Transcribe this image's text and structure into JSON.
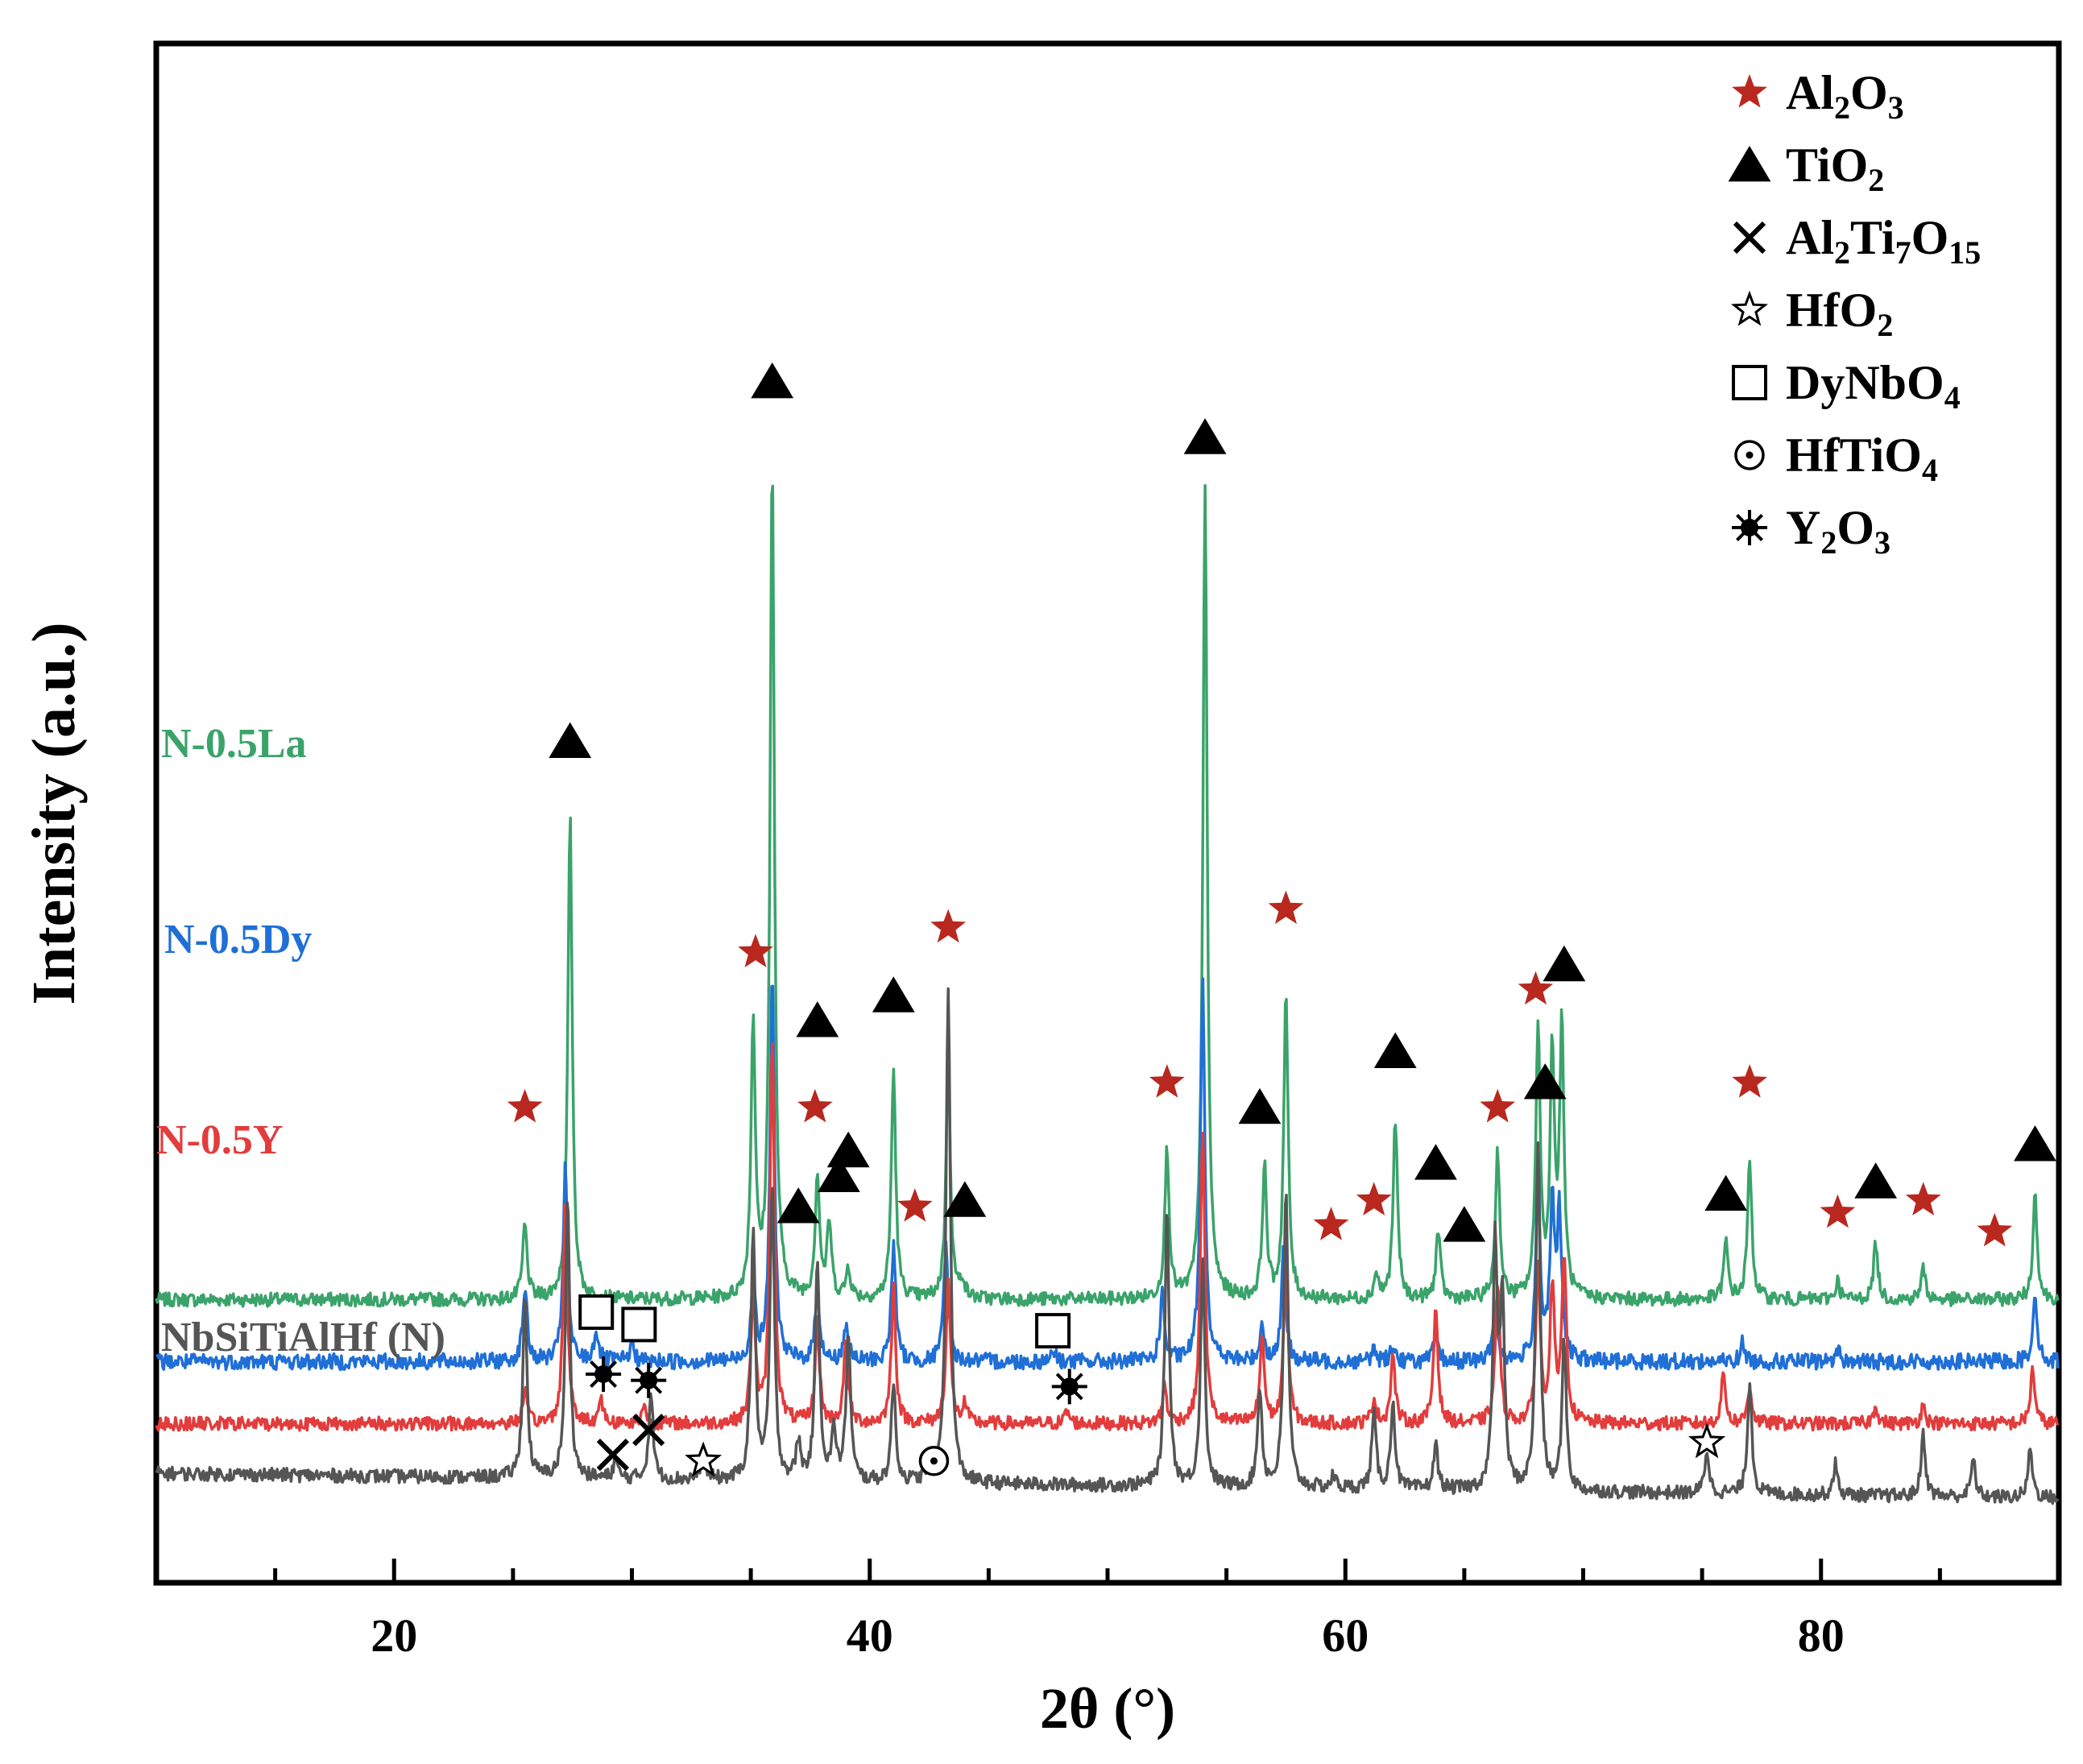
{
  "chart_data": {
    "type": "line",
    "title": "",
    "xlabel": "2θ (°)",
    "ylabel": "Intensity (a.u.)",
    "xlim": [
      10,
      90
    ],
    "xticks": [
      20,
      40,
      60,
      80
    ],
    "yticks": [],
    "colors": {
      "N-0.5La": "#3aa36a",
      "N-0.5Dy": "#1f6fd6",
      "N-0.5Y": "#e23c3c",
      "NbSiTiAlHf (N)": "#555555",
      "al2o3_marker": "#b8281f"
    },
    "legend": [
      {
        "key": "al2o3",
        "icon": "red-star-icon",
        "parts": [
          [
            "Al",
            ""
          ],
          [
            "2",
            "sub"
          ],
          [
            "O",
            ""
          ],
          [
            "3",
            "sub"
          ]
        ]
      },
      {
        "key": "tio2",
        "icon": "black-triangle-icon",
        "parts": [
          [
            "TiO",
            ""
          ],
          [
            "2",
            "sub"
          ]
        ]
      },
      {
        "key": "al2ti7o15",
        "icon": "cross-icon",
        "parts": [
          [
            "Al",
            ""
          ],
          [
            "2",
            "sub"
          ],
          [
            "Ti",
            ""
          ],
          [
            "7",
            "sub"
          ],
          [
            "O",
            ""
          ],
          [
            "15",
            "sub"
          ]
        ]
      },
      {
        "key": "hfo2",
        "icon": "open-star-icon",
        "parts": [
          [
            "HfO",
            ""
          ],
          [
            "2",
            "sub"
          ]
        ]
      },
      {
        "key": "dynbo4",
        "icon": "open-square-icon",
        "parts": [
          [
            "DyNbO",
            ""
          ],
          [
            "4",
            "sub"
          ]
        ]
      },
      {
        "key": "hftio4",
        "icon": "dotted-circle-icon",
        "parts": [
          [
            "HfTiO",
            ""
          ],
          [
            "4",
            "sub"
          ]
        ]
      },
      {
        "key": "y2o3",
        "icon": "sun-icon",
        "parts": [
          [
            "Y",
            ""
          ],
          [
            "2",
            "sub"
          ],
          [
            "O",
            ""
          ],
          [
            "3",
            "sub"
          ]
        ]
      }
    ],
    "series": [
      {
        "name": "N-0.5La",
        "label": "N-0.5La",
        "baseline": 32,
        "baseline_slope": 0,
        "noise": 1.1,
        "peaks": [
          [
            25.5,
            12
          ],
          [
            27.4,
            78
          ],
          [
            35.1,
            44
          ],
          [
            35.9,
            135
          ],
          [
            37.8,
            20
          ],
          [
            38.3,
            12
          ],
          [
            39.1,
            5
          ],
          [
            41.0,
            37
          ],
          [
            43.3,
            39
          ],
          [
            43.9,
            3
          ],
          [
            52.5,
            24
          ],
          [
            54.1,
            130
          ],
          [
            56.6,
            21
          ],
          [
            57.5,
            49
          ],
          [
            61.3,
            4
          ],
          [
            62.1,
            29
          ],
          [
            63.9,
            11
          ],
          [
            66.4,
            24
          ],
          [
            68.1,
            44
          ],
          [
            68.7,
            39
          ],
          [
            69.1,
            43
          ],
          [
            76.0,
            9
          ],
          [
            77.0,
            22
          ],
          [
            80.7,
            3
          ],
          [
            82.3,
            9
          ],
          [
            84.3,
            5
          ],
          [
            89.0,
            17
          ]
        ]
      },
      {
        "name": "N-0.5Dy",
        "label": "N-0.5Dy",
        "baseline": 22,
        "baseline_slope": 0,
        "noise": 1.3,
        "peaks": [
          [
            25.5,
            12
          ],
          [
            27.2,
            31
          ],
          [
            28.5,
            5
          ],
          [
            30.0,
            3
          ],
          [
            35.1,
            13
          ],
          [
            35.9,
            62
          ],
          [
            37.8,
            12
          ],
          [
            39.0,
            6
          ],
          [
            41.0,
            19
          ],
          [
            43.2,
            19
          ],
          [
            47.7,
            2
          ],
          [
            52.3,
            11
          ],
          [
            54.0,
            62
          ],
          [
            56.5,
            6
          ],
          [
            57.4,
            18
          ],
          [
            61.2,
            2
          ],
          [
            62.0,
            3
          ],
          [
            63.8,
            4
          ],
          [
            66.3,
            10
          ],
          [
            68.1,
            30
          ],
          [
            68.7,
            25
          ],
          [
            69.0,
            23
          ],
          [
            76.7,
            3
          ],
          [
            80.7,
            2
          ],
          [
            89.0,
            11
          ]
        ]
      },
      {
        "name": "N-0.5Y",
        "label": "N-0.5Y",
        "baseline": 12,
        "baseline_slope": 0,
        "noise": 1.1,
        "peaks": [
          [
            25.5,
            5
          ],
          [
            27.2,
            35
          ],
          [
            28.7,
            4
          ],
          [
            30.5,
            3
          ],
          [
            35.1,
            21
          ],
          [
            35.9,
            62
          ],
          [
            37.8,
            16
          ],
          [
            39.0,
            13
          ],
          [
            41.0,
            22
          ],
          [
            43.3,
            23
          ],
          [
            44.0,
            3
          ],
          [
            48.3,
            2
          ],
          [
            52.4,
            6
          ],
          [
            54.0,
            48
          ],
          [
            56.5,
            14
          ],
          [
            57.5,
            26
          ],
          [
            61.2,
            4
          ],
          [
            62.0,
            11
          ],
          [
            63.8,
            19
          ],
          [
            66.4,
            23
          ],
          [
            68.1,
            25
          ],
          [
            68.7,
            22
          ],
          [
            69.2,
            27
          ],
          [
            75.9,
            8
          ],
          [
            77.0,
            6
          ],
          [
            82.3,
            3
          ],
          [
            84.3,
            3
          ],
          [
            88.9,
            9
          ]
        ]
      },
      {
        "name": "NbSiTiAlHf (N)",
        "label": "NbSiTiAlHf (N)",
        "baseline": 0,
        "baseline_slope": 4,
        "noise": 1.1,
        "peaks": [
          [
            25.5,
            29
          ],
          [
            27.3,
            45
          ],
          [
            29.3,
            3
          ],
          [
            30.8,
            14
          ],
          [
            33.0,
            5
          ],
          [
            35.1,
            40
          ],
          [
            35.9,
            47
          ],
          [
            37.0,
            6
          ],
          [
            37.8,
            36
          ],
          [
            38.5,
            8
          ],
          [
            39.1,
            24
          ],
          [
            41.0,
            16
          ],
          [
            42.5,
            3
          ],
          [
            43.3,
            80
          ],
          [
            52.5,
            44
          ],
          [
            54.0,
            36
          ],
          [
            56.4,
            16
          ],
          [
            57.5,
            48
          ],
          [
            59.5,
            2
          ],
          [
            61.2,
            12
          ],
          [
            62.0,
            14
          ],
          [
            63.8,
            7
          ],
          [
            66.3,
            39
          ],
          [
            66.6,
            30
          ],
          [
            68.1,
            56
          ],
          [
            69.2,
            24
          ],
          [
            75.2,
            7
          ],
          [
            77.0,
            18
          ],
          [
            80.6,
            5
          ],
          [
            84.3,
            10
          ],
          [
            86.4,
            6
          ],
          [
            88.8,
            8
          ]
        ]
      }
    ],
    "markers": [
      {
        "type": "red-star",
        "x": 25.5,
        "y": 63
      },
      {
        "type": "triangle",
        "x": 27.4,
        "y": 122
      },
      {
        "type": "red-star",
        "x": 35.2,
        "y": 88
      },
      {
        "type": "triangle",
        "x": 35.9,
        "y": 180
      },
      {
        "type": "triangle",
        "x": 37.0,
        "y": 47
      },
      {
        "type": "red-star",
        "x": 37.7,
        "y": 63
      },
      {
        "type": "triangle",
        "x": 37.8,
        "y": 77
      },
      {
        "type": "triangle",
        "x": 38.7,
        "y": 52
      },
      {
        "type": "triangle",
        "x": 39.1,
        "y": 56
      },
      {
        "type": "triangle",
        "x": 41.0,
        "y": 81
      },
      {
        "type": "red-star",
        "x": 41.9,
        "y": 47
      },
      {
        "type": "red-star",
        "x": 43.3,
        "y": 92
      },
      {
        "type": "triangle",
        "x": 44.0,
        "y": 48
      },
      {
        "type": "red-star",
        "x": 52.5,
        "y": 67
      },
      {
        "type": "triangle",
        "x": 54.1,
        "y": 171
      },
      {
        "type": "triangle",
        "x": 56.4,
        "y": 63
      },
      {
        "type": "red-star",
        "x": 57.5,
        "y": 95
      },
      {
        "type": "red-star",
        "x": 59.4,
        "y": 44
      },
      {
        "type": "red-star",
        "x": 61.2,
        "y": 48
      },
      {
        "type": "triangle",
        "x": 62.1,
        "y": 72
      },
      {
        "type": "triangle",
        "x": 63.8,
        "y": 54
      },
      {
        "type": "triangle",
        "x": 65.0,
        "y": 44
      },
      {
        "type": "red-star",
        "x": 66.4,
        "y": 63
      },
      {
        "type": "red-star",
        "x": 68.0,
        "y": 82
      },
      {
        "type": "triangle",
        "x": 68.4,
        "y": 67
      },
      {
        "type": "triangle",
        "x": 69.2,
        "y": 86
      },
      {
        "type": "triangle",
        "x": 76.0,
        "y": 49
      },
      {
        "type": "red-star",
        "x": 77.0,
        "y": 67
      },
      {
        "type": "red-star",
        "x": 80.7,
        "y": 46
      },
      {
        "type": "triangle",
        "x": 82.3,
        "y": 51
      },
      {
        "type": "red-star",
        "x": 84.3,
        "y": 48
      },
      {
        "type": "red-star",
        "x": 87.3,
        "y": 43
      },
      {
        "type": "triangle",
        "x": 89.0,
        "y": 57
      },
      {
        "type": "square",
        "x": 28.5,
        "y": 30
      },
      {
        "type": "square",
        "x": 30.3,
        "y": 28
      },
      {
        "type": "square",
        "x": 47.7,
        "y": 27
      },
      {
        "type": "sun",
        "x": 28.8,
        "y": 20
      },
      {
        "type": "sun",
        "x": 30.7,
        "y": 19
      },
      {
        "type": "sun",
        "x": 48.4,
        "y": 18
      },
      {
        "type": "cross",
        "x": 29.2,
        "y": 7
      },
      {
        "type": "cross",
        "x": 30.7,
        "y": 11
      },
      {
        "type": "open-star",
        "x": 33.0,
        "y": 6
      },
      {
        "type": "dot-circle",
        "x": 42.7,
        "y": 6
      },
      {
        "type": "open-star",
        "x": 75.2,
        "y": 9
      }
    ]
  }
}
